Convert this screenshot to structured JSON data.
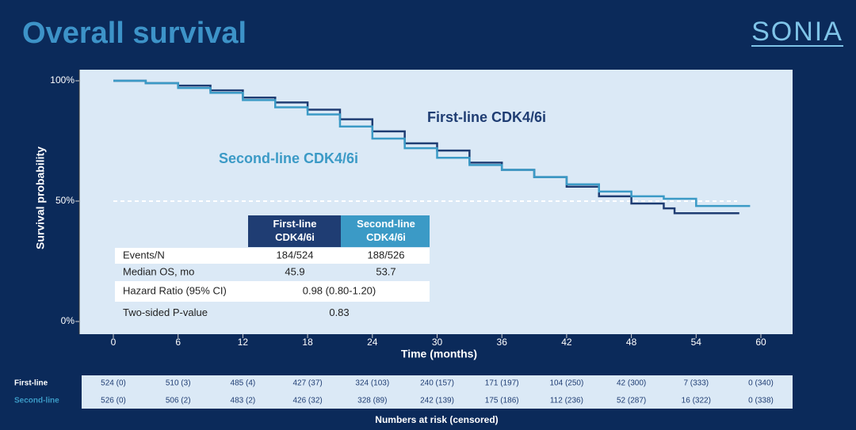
{
  "header": {
    "title": "Overall survival",
    "logo": "SONIA"
  },
  "chart_data": {
    "type": "line",
    "step": true,
    "x": [
      0,
      3,
      6,
      9,
      12,
      15,
      18,
      21,
      24,
      27,
      30,
      33,
      36,
      39,
      42,
      45,
      48,
      51,
      52,
      54,
      55,
      58,
      59
    ],
    "series": [
      {
        "name": "First-line CDK4/6i",
        "color": "#1f3d73",
        "values": [
          100,
          99,
          98,
          96,
          93,
          91,
          88,
          84,
          79,
          74,
          71,
          66,
          63,
          60,
          56,
          52,
          49,
          47,
          45,
          45,
          45,
          45,
          null
        ]
      },
      {
        "name": "Second-line CDK4/6i",
        "color": "#3b9ac6",
        "values": [
          100,
          99,
          97,
          95,
          92,
          89,
          86,
          81,
          76,
          72,
          68,
          65,
          63,
          60,
          57,
          54,
          52,
          51,
          51,
          48,
          48,
          48,
          48
        ]
      }
    ],
    "xlabel": "Time (months)",
    "ylabel": "Survival probability",
    "xlim": [
      0,
      60
    ],
    "xticks": [
      0,
      6,
      12,
      18,
      24,
      30,
      36,
      42,
      48,
      54,
      60
    ],
    "ylim": [
      0,
      100
    ],
    "yticks": [
      {
        "value": 0,
        "label": "0%"
      },
      {
        "value": 50,
        "label": "50%"
      },
      {
        "value": 100,
        "label": "100%"
      }
    ],
    "hline": 50,
    "grid": false
  },
  "summary_table": {
    "header": [
      "First-line CDK4/6i",
      "Second-line CDK4/6i"
    ],
    "rows": [
      [
        "Events/N",
        "184/524",
        "188/526"
      ],
      [
        "Median OS, mo",
        "45.9",
        "53.7"
      ],
      [
        "Hazard Ratio (95% CI)",
        "0.98 (0.80-1.20)"
      ],
      [
        "Two-sided P-value",
        "0.83"
      ]
    ]
  },
  "risk_table": {
    "caption": "Numbers at risk (censored)",
    "rows": [
      {
        "label": "First-line",
        "cells": [
          "524 (0)",
          "510 (3)",
          "485 (4)",
          "427 (37)",
          "324 (103)",
          "240 (157)",
          "171 (197)",
          "104 (250)",
          "42 (300)",
          "7 (333)",
          "0 (340)"
        ]
      },
      {
        "label": "Second-line",
        "cells": [
          "526 (0)",
          "506 (2)",
          "483 (2)",
          "426 (32)",
          "328 (89)",
          "242 (139)",
          "175 (186)",
          "112 (236)",
          "52 (287)",
          "16 (322)",
          "0 (338)"
        ]
      }
    ]
  }
}
